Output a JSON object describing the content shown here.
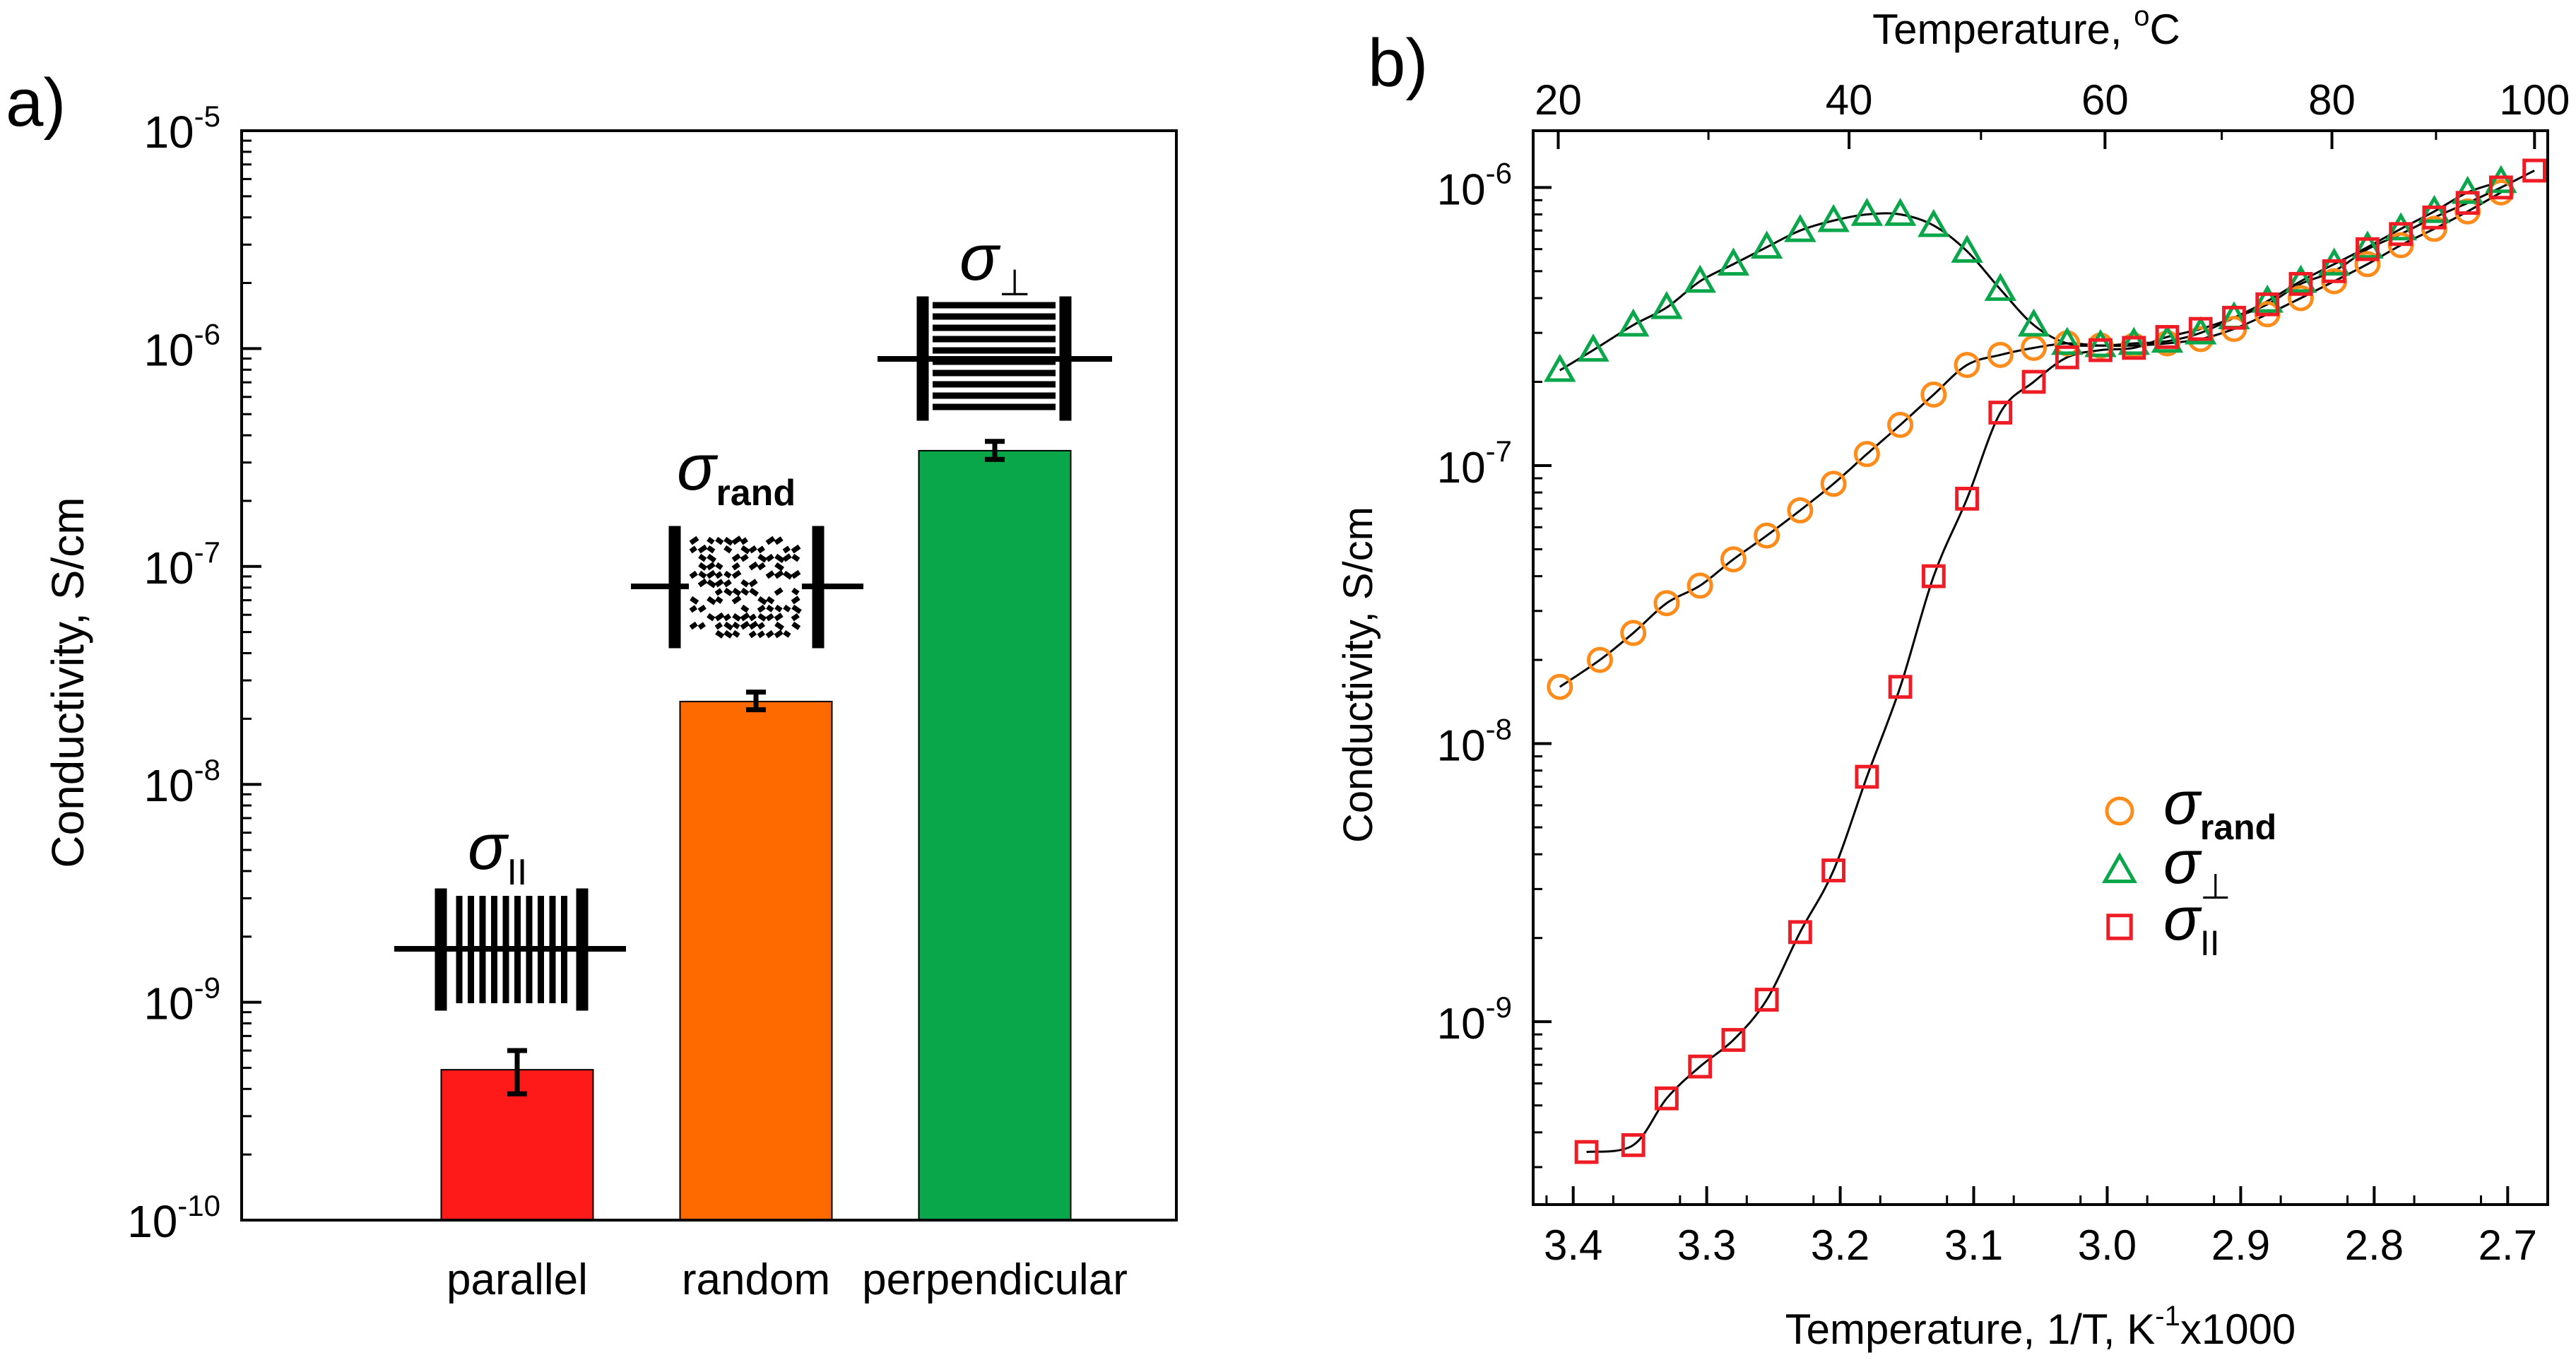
{
  "panel_labels": {
    "a": "a)",
    "b": "b)"
  },
  "chart_data": [
    {
      "type": "bar",
      "panel": "a)",
      "title": "",
      "xlabel": "",
      "ylabel": "Conductivity, S/cm",
      "yscale": "log",
      "ylim": [
        1e-10,
        1e-05
      ],
      "ytick_exponents": [
        "-10",
        "-9",
        "-8",
        "-7",
        "-6",
        "-5"
      ],
      "ytick_base": "10",
      "categories": [
        "parallel",
        "random",
        "perpendicular"
      ],
      "values": [
        4.9e-10,
        2.4e-08,
        3.4e-07
      ],
      "errors_low": [
        3.8e-10,
        2.2e-08,
        3.1e-07
      ],
      "errors_high": [
        6e-10,
        2.65e-08,
        3.75e-07
      ],
      "colors": [
        "#ff1a1a",
        "#ff6a00",
        "#0aa64a"
      ],
      "annotations": [
        {
          "symbol": "σ",
          "subscript": "II",
          "icon": "parallel-lines"
        },
        {
          "symbol": "σ",
          "subscript": "rand",
          "icon": "random-texture"
        },
        {
          "symbol": "σ",
          "subscript": "⊥",
          "icon": "perpendicular-lines"
        }
      ]
    },
    {
      "type": "scatter",
      "panel": "b)",
      "xlabel": "Temperature, 1/T, K",
      "xlabel_sup": "-1",
      "xlabel_suffix": "x1000",
      "top_xlabel": "Temperature, ",
      "top_xlabel_sup": "o",
      "top_xlabel_suffix": "C",
      "ylabel": "Conductivity, S/cm",
      "yscale": "log",
      "xlim": [
        3.43,
        2.67
      ],
      "ylim": [
        2.2e-10,
        1.6e-06
      ],
      "xticks": [
        "3.4",
        "3.3",
        "3.2",
        "3.1",
        "3.0",
        "2.9",
        "2.8",
        "2.7"
      ],
      "top_xticks": [
        "20",
        "40",
        "60",
        "80",
        "100"
      ],
      "ytick_exponents": [
        "-9",
        "-8",
        "-7",
        "-6"
      ],
      "ytick_base": "10",
      "series": [
        {
          "name": "σ",
          "subscript": "rand",
          "marker": "circle",
          "color": "#ff8c1a",
          "x": [
            3.41,
            3.38,
            3.355,
            3.33,
            3.305,
            3.28,
            3.255,
            3.23,
            3.205,
            3.18,
            3.155,
            3.13,
            3.105,
            3.08,
            3.055,
            3.03,
            3.005,
            2.98,
            2.955,
            2.93,
            2.905,
            2.88,
            2.855,
            2.83,
            2.805,
            2.78,
            2.755,
            2.73,
            2.705
          ],
          "y": [
            1.6e-08,
            2e-08,
            2.5e-08,
            3.2e-08,
            3.7e-08,
            4.6e-08,
            5.6e-08,
            6.9e-08,
            8.6e-08,
            1.1e-07,
            1.4e-07,
            1.8e-07,
            2.3e-07,
            2.5e-07,
            2.65e-07,
            2.75e-07,
            2.7e-07,
            2.7e-07,
            2.75e-07,
            2.85e-07,
            3.1e-07,
            3.5e-07,
            4e-07,
            4.6e-07,
            5.3e-07,
            6.2e-07,
            7.1e-07,
            8.2e-07,
            9.6e-07
          ]
        },
        {
          "name": "σ",
          "subscript": "⊥",
          "marker": "triangle",
          "color": "#0aa64a",
          "x": [
            3.41,
            3.385,
            3.355,
            3.33,
            3.305,
            3.28,
            3.255,
            3.23,
            3.205,
            3.18,
            3.155,
            3.13,
            3.105,
            3.08,
            3.055,
            3.03,
            3.005,
            2.98,
            2.955,
            2.93,
            2.905,
            2.88,
            2.855,
            2.83,
            2.805,
            2.78,
            2.755,
            2.73,
            2.705
          ],
          "y": [
            2.2e-07,
            2.6e-07,
            3.2e-07,
            3.7e-07,
            4.6e-07,
            5.3e-07,
            6.1e-07,
            7e-07,
            7.6e-07,
            8e-07,
            8e-07,
            7.3e-07,
            5.9e-07,
            4.3e-07,
            3.2e-07,
            2.75e-07,
            2.7e-07,
            2.75e-07,
            2.8e-07,
            3e-07,
            3.4e-07,
            3.9e-07,
            4.6e-07,
            5.3e-07,
            6.1e-07,
            7.1e-07,
            8.2e-07,
            9.6e-07,
            1.05e-06
          ]
        },
        {
          "name": "σ",
          "subscript": "II",
          "marker": "square",
          "color": "#ee1c25",
          "x": [
            3.39,
            3.355,
            3.33,
            3.305,
            3.28,
            3.255,
            3.23,
            3.205,
            3.18,
            3.155,
            3.13,
            3.105,
            3.08,
            3.055,
            3.03,
            3.005,
            2.98,
            2.955,
            2.93,
            2.905,
            2.88,
            2.855,
            2.83,
            2.805,
            2.78,
            2.755,
            2.73,
            2.705,
            2.68
          ],
          "y": [
            3.4e-10,
            3.6e-10,
            5.3e-10,
            6.9e-10,
            8.6e-10,
            1.2e-09,
            2.1e-09,
            3.5e-09,
            7.6e-09,
            1.6e-08,
            4e-08,
            7.6e-08,
            1.55e-07,
            2e-07,
            2.45e-07,
            2.6e-07,
            2.65e-07,
            2.9e-07,
            3.1e-07,
            3.4e-07,
            3.8e-07,
            4.5e-07,
            5e-07,
            6e-07,
            6.8e-07,
            7.8e-07,
            8.8e-07,
            1e-06,
            1.15e-06
          ]
        }
      ],
      "legend": "center-right"
    }
  ]
}
